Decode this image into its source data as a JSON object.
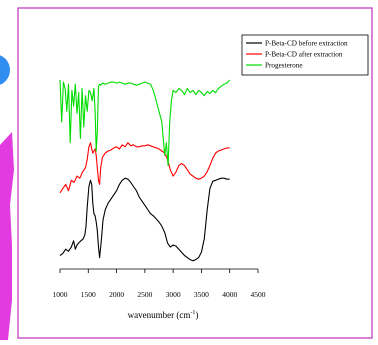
{
  "chart_data": {
    "type": "line",
    "xlabel": "wavenumber (cm",
    "xlabel_sup": "-1",
    "xlabel_tail": ")",
    "xlim": [
      1000,
      4500
    ],
    "xticks": [
      "1000",
      "1500",
      "2000",
      "2500",
      "3000",
      "3500",
      "4000",
      "4500"
    ],
    "y_axis_visible": false,
    "legend_position": "top-right",
    "series": [
      {
        "name": "P-Beta-CD before extraction",
        "color": "#000000",
        "x": [
          1000,
          1050,
          1100,
          1150,
          1200,
          1240,
          1270,
          1300,
          1330,
          1370,
          1410,
          1440,
          1460,
          1480,
          1510,
          1540,
          1560,
          1580,
          1600,
          1620,
          1640,
          1660,
          1680,
          1700,
          1730,
          1760,
          1800,
          1850,
          1900,
          1950,
          2000,
          2050,
          2100,
          2150,
          2200,
          2250,
          2300,
          2350,
          2400,
          2450,
          2500,
          2550,
          2600,
          2650,
          2700,
          2750,
          2800,
          2850,
          2900,
          2950,
          3000,
          3050,
          3100,
          3150,
          3200,
          3250,
          3300,
          3350,
          3400,
          3450,
          3500,
          3550,
          3600,
          3650,
          3700,
          3750,
          3800,
          3850,
          3900,
          3950,
          4000
        ],
        "y": [
          12,
          14,
          18,
          16,
          20,
          26,
          18,
          22,
          24,
          26,
          28,
          32,
          40,
          58,
          78,
          84,
          80,
          62,
          52,
          50,
          44,
          36,
          20,
          10,
          26,
          46,
          56,
          62,
          66,
          70,
          74,
          80,
          84,
          86,
          85,
          82,
          78,
          74,
          68,
          64,
          60,
          56,
          52,
          50,
          47,
          44,
          40,
          34,
          24,
          20,
          22,
          21,
          18,
          15,
          12,
          10,
          8,
          7,
          8,
          10,
          15,
          28,
          55,
          76,
          83,
          84,
          85,
          86,
          86,
          85,
          85
        ]
      },
      {
        "name": "P-Beta-CD after extraction",
        "color": "#ff0000",
        "x": [
          1000,
          1050,
          1100,
          1150,
          1200,
          1250,
          1300,
          1350,
          1400,
          1450,
          1480,
          1510,
          1540,
          1560,
          1580,
          1600,
          1620,
          1640,
          1660,
          1680,
          1700,
          1720,
          1750,
          1800,
          1850,
          1900,
          1950,
          2000,
          2050,
          2100,
          2150,
          2200,
          2250,
          2300,
          2350,
          2400,
          2450,
          2500,
          2550,
          2600,
          2650,
          2700,
          2750,
          2800,
          2850,
          2900,
          2950,
          3000,
          3050,
          3100,
          3150,
          3200,
          3250,
          3300,
          3350,
          3400,
          3450,
          3500,
          3550,
          3600,
          3650,
          3700,
          3750,
          3800,
          3850,
          3900,
          3950,
          4000
        ],
        "y": [
          72,
          76,
          80,
          74,
          84,
          82,
          88,
          86,
          92,
          96,
          104,
          116,
          120,
          114,
          110,
          112,
          114,
          108,
          96,
          84,
          80,
          96,
          106,
          110,
          112,
          113,
          115,
          116,
          114,
          118,
          116,
          120,
          117,
          118,
          116,
          116,
          117,
          117,
          118,
          117,
          116,
          115,
          114,
          112,
          110,
          104,
          94,
          88,
          92,
          98,
          100,
          98,
          94,
          90,
          88,
          86,
          85,
          86,
          88,
          92,
          98,
          105,
          110,
          112,
          113,
          114,
          115,
          115
        ]
      },
      {
        "name": "Progesterone",
        "color": "#00dd00",
        "x": [
          1000,
          1030,
          1060,
          1090,
          1120,
          1150,
          1180,
          1210,
          1240,
          1270,
          1300,
          1330,
          1360,
          1390,
          1420,
          1450,
          1480,
          1510,
          1540,
          1570,
          1600,
          1620,
          1640,
          1660,
          1680,
          1700,
          1720,
          1750,
          1800,
          1850,
          1900,
          1950,
          2000,
          2050,
          2100,
          2150,
          2200,
          2250,
          2300,
          2350,
          2400,
          2450,
          2500,
          2550,
          2600,
          2650,
          2700,
          2750,
          2800,
          2850,
          2880,
          2910,
          2940,
          2970,
          3000,
          3050,
          3100,
          3150,
          3200,
          3250,
          3300,
          3350,
          3400,
          3450,
          3500,
          3550,
          3600,
          3650,
          3700,
          3750,
          3800,
          3850,
          3900,
          3950,
          4000
        ],
        "y": [
          180,
          140,
          178,
          172,
          150,
          176,
          120,
          170,
          155,
          176,
          148,
          168,
          124,
          172,
          135,
          165,
          150,
          170,
          168,
          160,
          172,
          150,
          112,
          130,
          174,
          176,
          175,
          177,
          176,
          177,
          178,
          178,
          177,
          178,
          177,
          176,
          177,
          177,
          176,
          175,
          176,
          177,
          178,
          177,
          176,
          170,
          160,
          150,
          140,
          108,
          120,
          98,
          140,
          160,
          170,
          168,
          172,
          170,
          166,
          172,
          168,
          170,
          166,
          170,
          168,
          165,
          169,
          167,
          170,
          168,
          172,
          174,
          176,
          177,
          180
        ]
      }
    ]
  }
}
